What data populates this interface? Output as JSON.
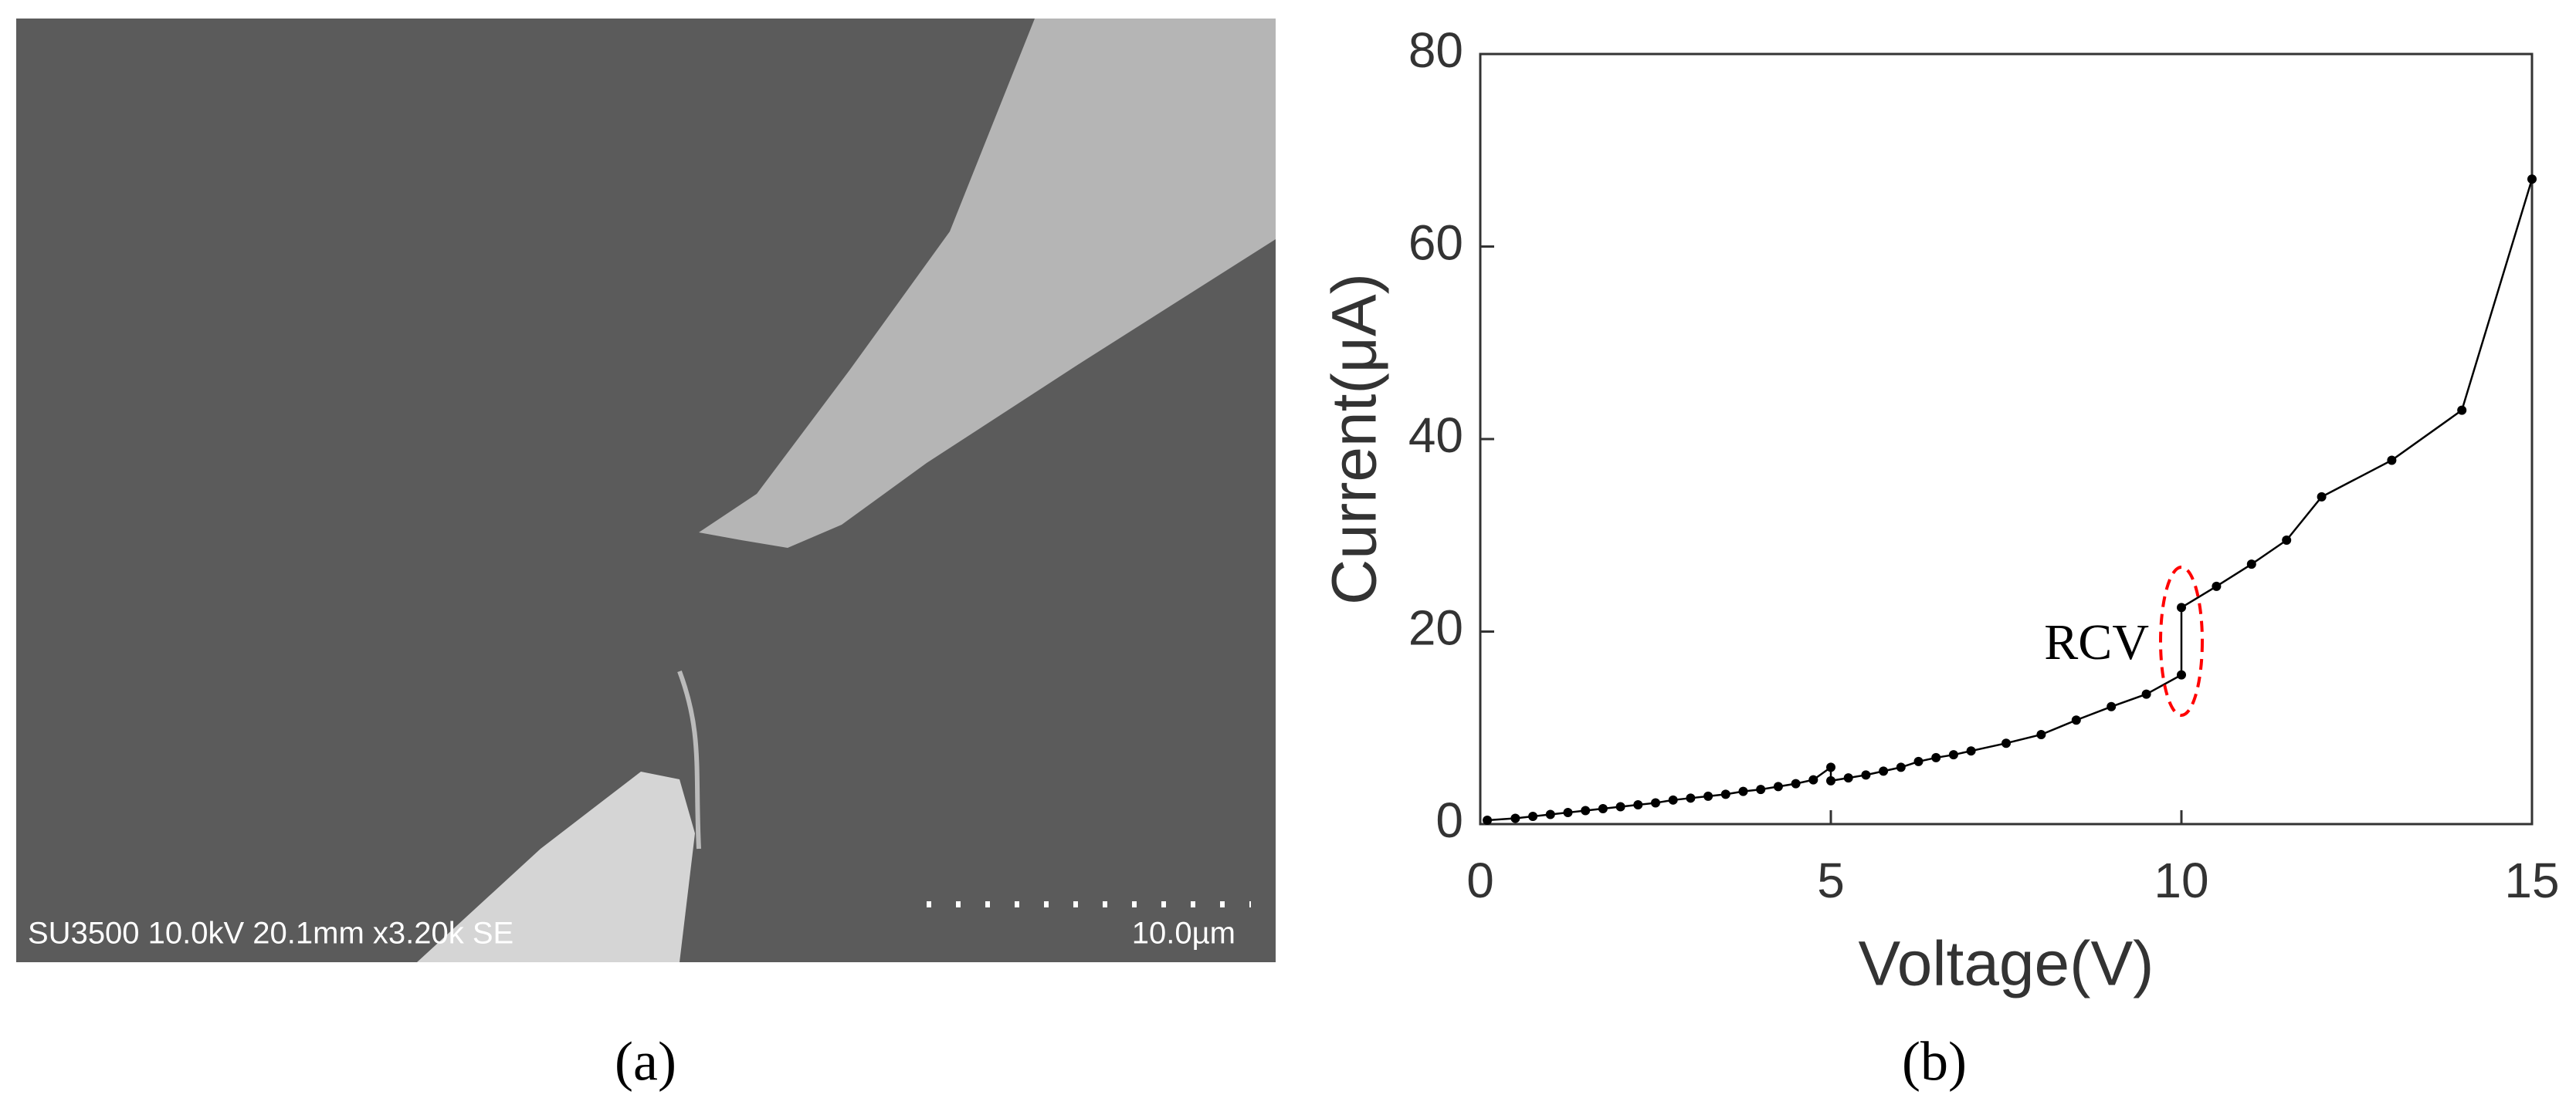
{
  "sem_image": {
    "info": "SU3500 10.0kV 20.1mm x3.20k SE",
    "scale_bar": "10.0µm"
  },
  "panel_labels": [
    "(a)",
    "(b)"
  ],
  "chart_data": {
    "type": "line",
    "x_label": "Voltage(V)",
    "y_label": "Current(μA)",
    "annotation": "RCV",
    "color": "#000000",
    "annotation_color": "#ff0000",
    "xlim": [
      0,
      15
    ],
    "ylim": [
      0,
      80
    ],
    "xticks": [
      0,
      5,
      10,
      15
    ],
    "yticks": [
      0,
      20,
      40,
      60,
      80
    ],
    "x": [
      0.1,
      0.5,
      0.75,
      1,
      1.25,
      1.5,
      1.75,
      2,
      2.25,
      2.5,
      2.75,
      3,
      3.25,
      3.5,
      3.75,
      4,
      4.25,
      4.5,
      4.75,
      5,
      5,
      5.25,
      5.5,
      5.75,
      6,
      6.25,
      6.5,
      6.75,
      7,
      7.5,
      8,
      8.5,
      9,
      9.5,
      10,
      10,
      10.5,
      11,
      11.5,
      12,
      13,
      14,
      15
    ],
    "values": [
      0.4,
      0.6,
      0.8,
      1.0,
      1.2,
      1.4,
      1.6,
      1.8,
      2.0,
      2.2,
      2.5,
      2.7,
      2.9,
      3.1,
      3.4,
      3.6,
      3.9,
      4.2,
      4.6,
      5.9,
      4.5,
      4.8,
      5.1,
      5.5,
      5.9,
      6.5,
      6.9,
      7.2,
      7.6,
      8.4,
      9.3,
      10.8,
      12.2,
      13.5,
      15.5,
      22.5,
      24.7,
      27,
      29.5,
      34,
      37.8,
      43,
      67
    ]
  }
}
